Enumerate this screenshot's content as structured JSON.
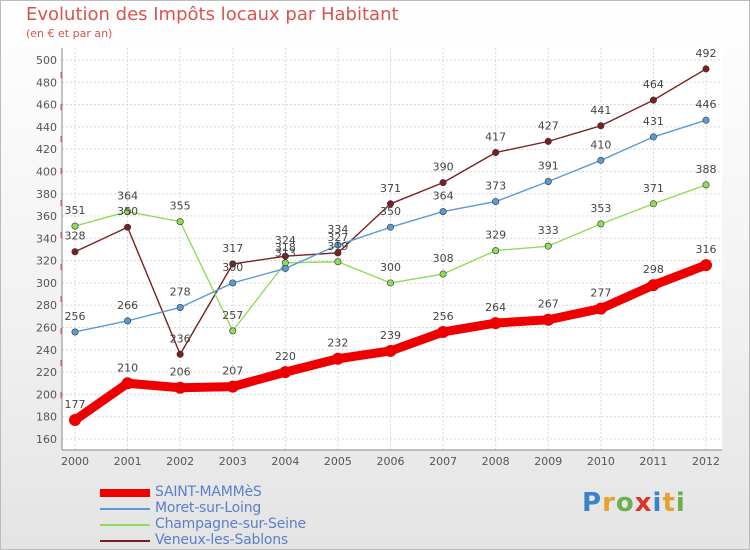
{
  "header": {
    "title": "Evolution des Impôts locaux par Habitant",
    "subtitle": "(en € et par an)"
  },
  "chart_data": {
    "type": "line",
    "title": "Evolution des Impôts locaux par Habitant",
    "subtitle": "(en € et par an)",
    "xlabel": "",
    "ylabel": "",
    "categories": [
      "2000",
      "2001",
      "2002",
      "2003",
      "2004",
      "2005",
      "2006",
      "2007",
      "2008",
      "2009",
      "2010",
      "2011",
      "2012"
    ],
    "ylim": [
      160,
      500
    ],
    "yticks": [
      160,
      180,
      200,
      220,
      240,
      260,
      280,
      300,
      320,
      340,
      360,
      380,
      400,
      420,
      440,
      460,
      480,
      500
    ],
    "grid": true,
    "legend_position": "bottom-left",
    "series": [
      {
        "name": "SAINT-MAMMèS",
        "color": "#ee0000",
        "values": [
          177,
          210,
          206,
          207,
          220,
          232,
          239,
          256,
          264,
          267,
          277,
          298,
          316
        ]
      },
      {
        "name": "Moret-sur-Loing",
        "color": "#5b9bd5",
        "values": [
          256,
          266,
          278,
          300,
          313,
          334,
          350,
          364,
          373,
          391,
          410,
          431,
          446
        ]
      },
      {
        "name": "Champagne-sur-Seine",
        "color": "#8fdc5a",
        "values": [
          351,
          364,
          355,
          257,
          318,
          319,
          300,
          308,
          329,
          333,
          353,
          371,
          388
        ]
      },
      {
        "name": "Veneux-les-Sablons",
        "color": "#7a2020",
        "values": [
          328,
          350,
          236,
          317,
          324,
          327,
          371,
          390,
          417,
          427,
          441,
          464,
          492
        ]
      }
    ]
  },
  "legend": {
    "items": [
      {
        "label": "SAINT-MAMMèS",
        "color": "#ee0000"
      },
      {
        "label": "Moret-sur-Loing",
        "color": "#5b9bd5"
      },
      {
        "label": "Champagne-sur-Seine",
        "color": "#8fdc5a"
      },
      {
        "label": "Veneux-les-Sablons",
        "color": "#7a2020"
      }
    ]
  },
  "logo": {
    "p": "P",
    "r": "r",
    "o": "o",
    "x": "x",
    "i": "i",
    "t": "t",
    "i2": "i"
  }
}
